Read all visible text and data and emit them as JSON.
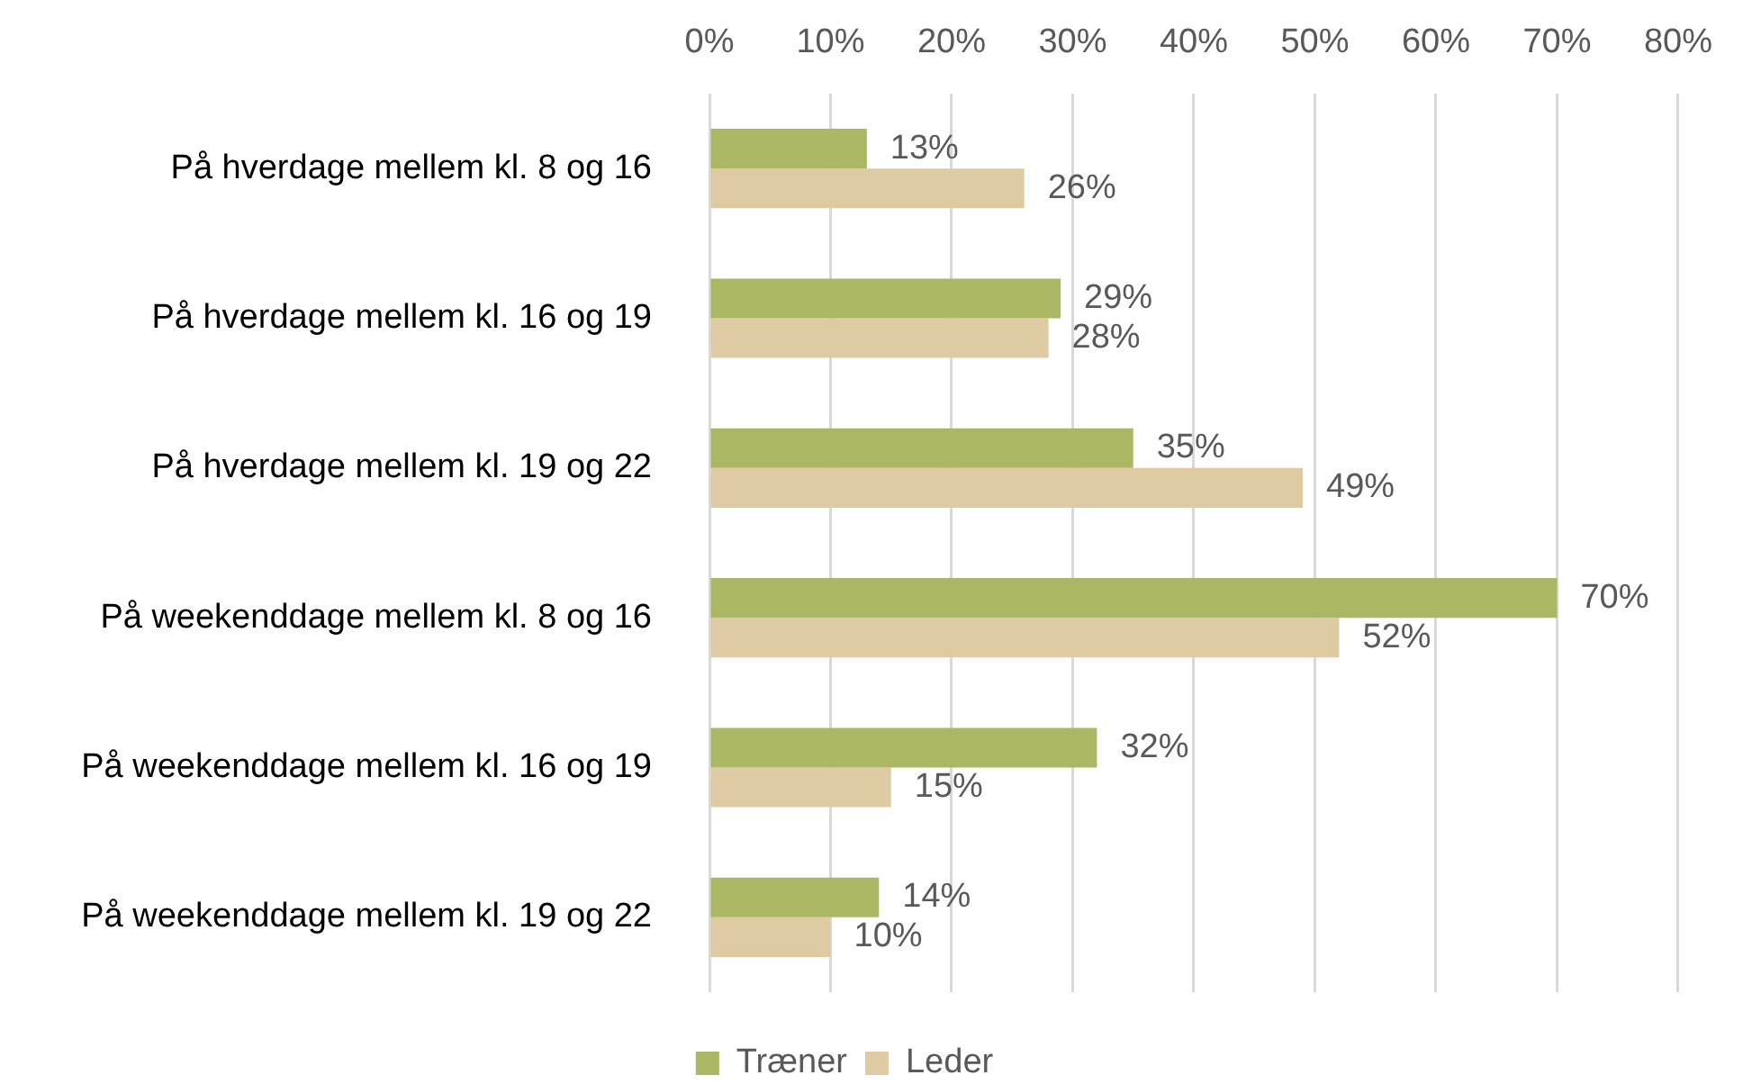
{
  "chart_data": {
    "type": "bar",
    "orientation": "horizontal",
    "categories": [
      "På hverdage mellem kl. 8 og 16",
      "På hverdage mellem kl. 16 og 19",
      "På hverdage mellem kl. 19 og 22",
      "På weekenddage mellem kl. 8 og 16",
      "På weekenddage mellem kl. 16 og 19",
      "På weekenddage mellem kl. 19 og 22"
    ],
    "series": [
      {
        "name": "Træner",
        "color": "#acb764",
        "values": [
          13,
          29,
          35,
          70,
          32,
          14
        ],
        "value_labels": [
          "13%",
          "29%",
          "35%",
          "70%",
          "32%",
          "14%"
        ]
      },
      {
        "name": "Leder",
        "color": "#dfcba3",
        "values": [
          26,
          28,
          49,
          52,
          15,
          10
        ],
        "value_labels": [
          "26%",
          "28%",
          "49%",
          "52%",
          "15%",
          "10%"
        ]
      }
    ],
    "xlim": [
      0,
      80
    ],
    "xticks": [
      {
        "value": 0,
        "label": "0%"
      },
      {
        "value": 10,
        "label": "10%"
      },
      {
        "value": 20,
        "label": "20%"
      },
      {
        "value": 30,
        "label": "30%"
      },
      {
        "value": 40,
        "label": "40%"
      },
      {
        "value": 50,
        "label": "50%"
      },
      {
        "value": 60,
        "label": "60%"
      },
      {
        "value": 70,
        "label": "70%"
      },
      {
        "value": 80,
        "label": "80%"
      }
    ],
    "grid": "x",
    "legend": "bottom"
  }
}
